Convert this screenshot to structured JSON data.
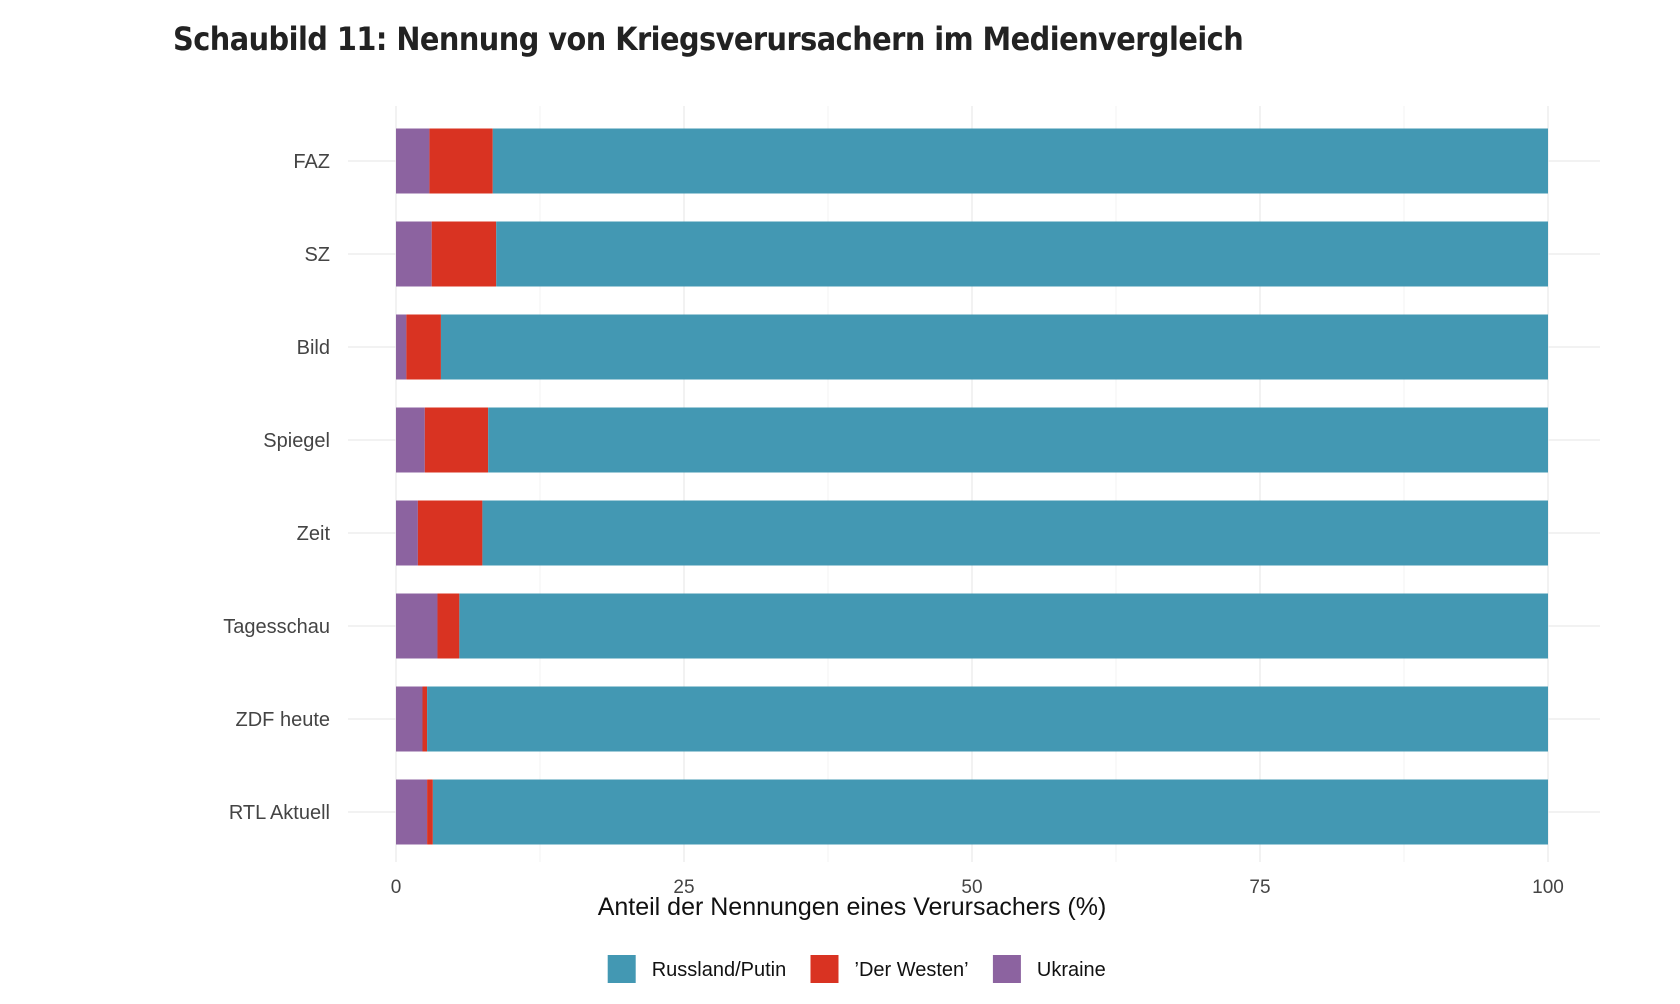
{
  "chart_data": {
    "type": "bar",
    "orientation": "horizontal",
    "stacked": true,
    "title": "Schaubild 11: Nennung von Kriegsverursachern im Medienvergleich",
    "xlabel": "Anteil der Nennungen eines Verursachers (%)",
    "ylabel": "",
    "xlim": [
      0,
      100
    ],
    "xticks": [
      0,
      25,
      50,
      75,
      100
    ],
    "grid": true,
    "legend_position": "bottom",
    "categories": [
      "FAZ",
      "SZ",
      "Bild",
      "Spiegel",
      "Zeit",
      "Tagesschau",
      "ZDF heute",
      "RTL Aktuell"
    ],
    "series": [
      {
        "name": "Ukraine",
        "color": "#8c63a0",
        "values": [
          2.9,
          3.1,
          0.9,
          2.5,
          1.9,
          3.6,
          2.3,
          2.7
        ]
      },
      {
        "name": "’Der Westen’",
        "color": "#d93322",
        "values": [
          5.5,
          5.6,
          3.0,
          5.5,
          5.6,
          1.9,
          0.4,
          0.5
        ]
      },
      {
        "name": "Russland/Putin",
        "color": "#4398b3",
        "values": [
          91.6,
          91.3,
          96.1,
          92.0,
          92.5,
          94.5,
          97.3,
          96.8
        ]
      }
    ],
    "legend_order": [
      "Russland/Putin",
      "’Der Westen’",
      "Ukraine"
    ]
  }
}
